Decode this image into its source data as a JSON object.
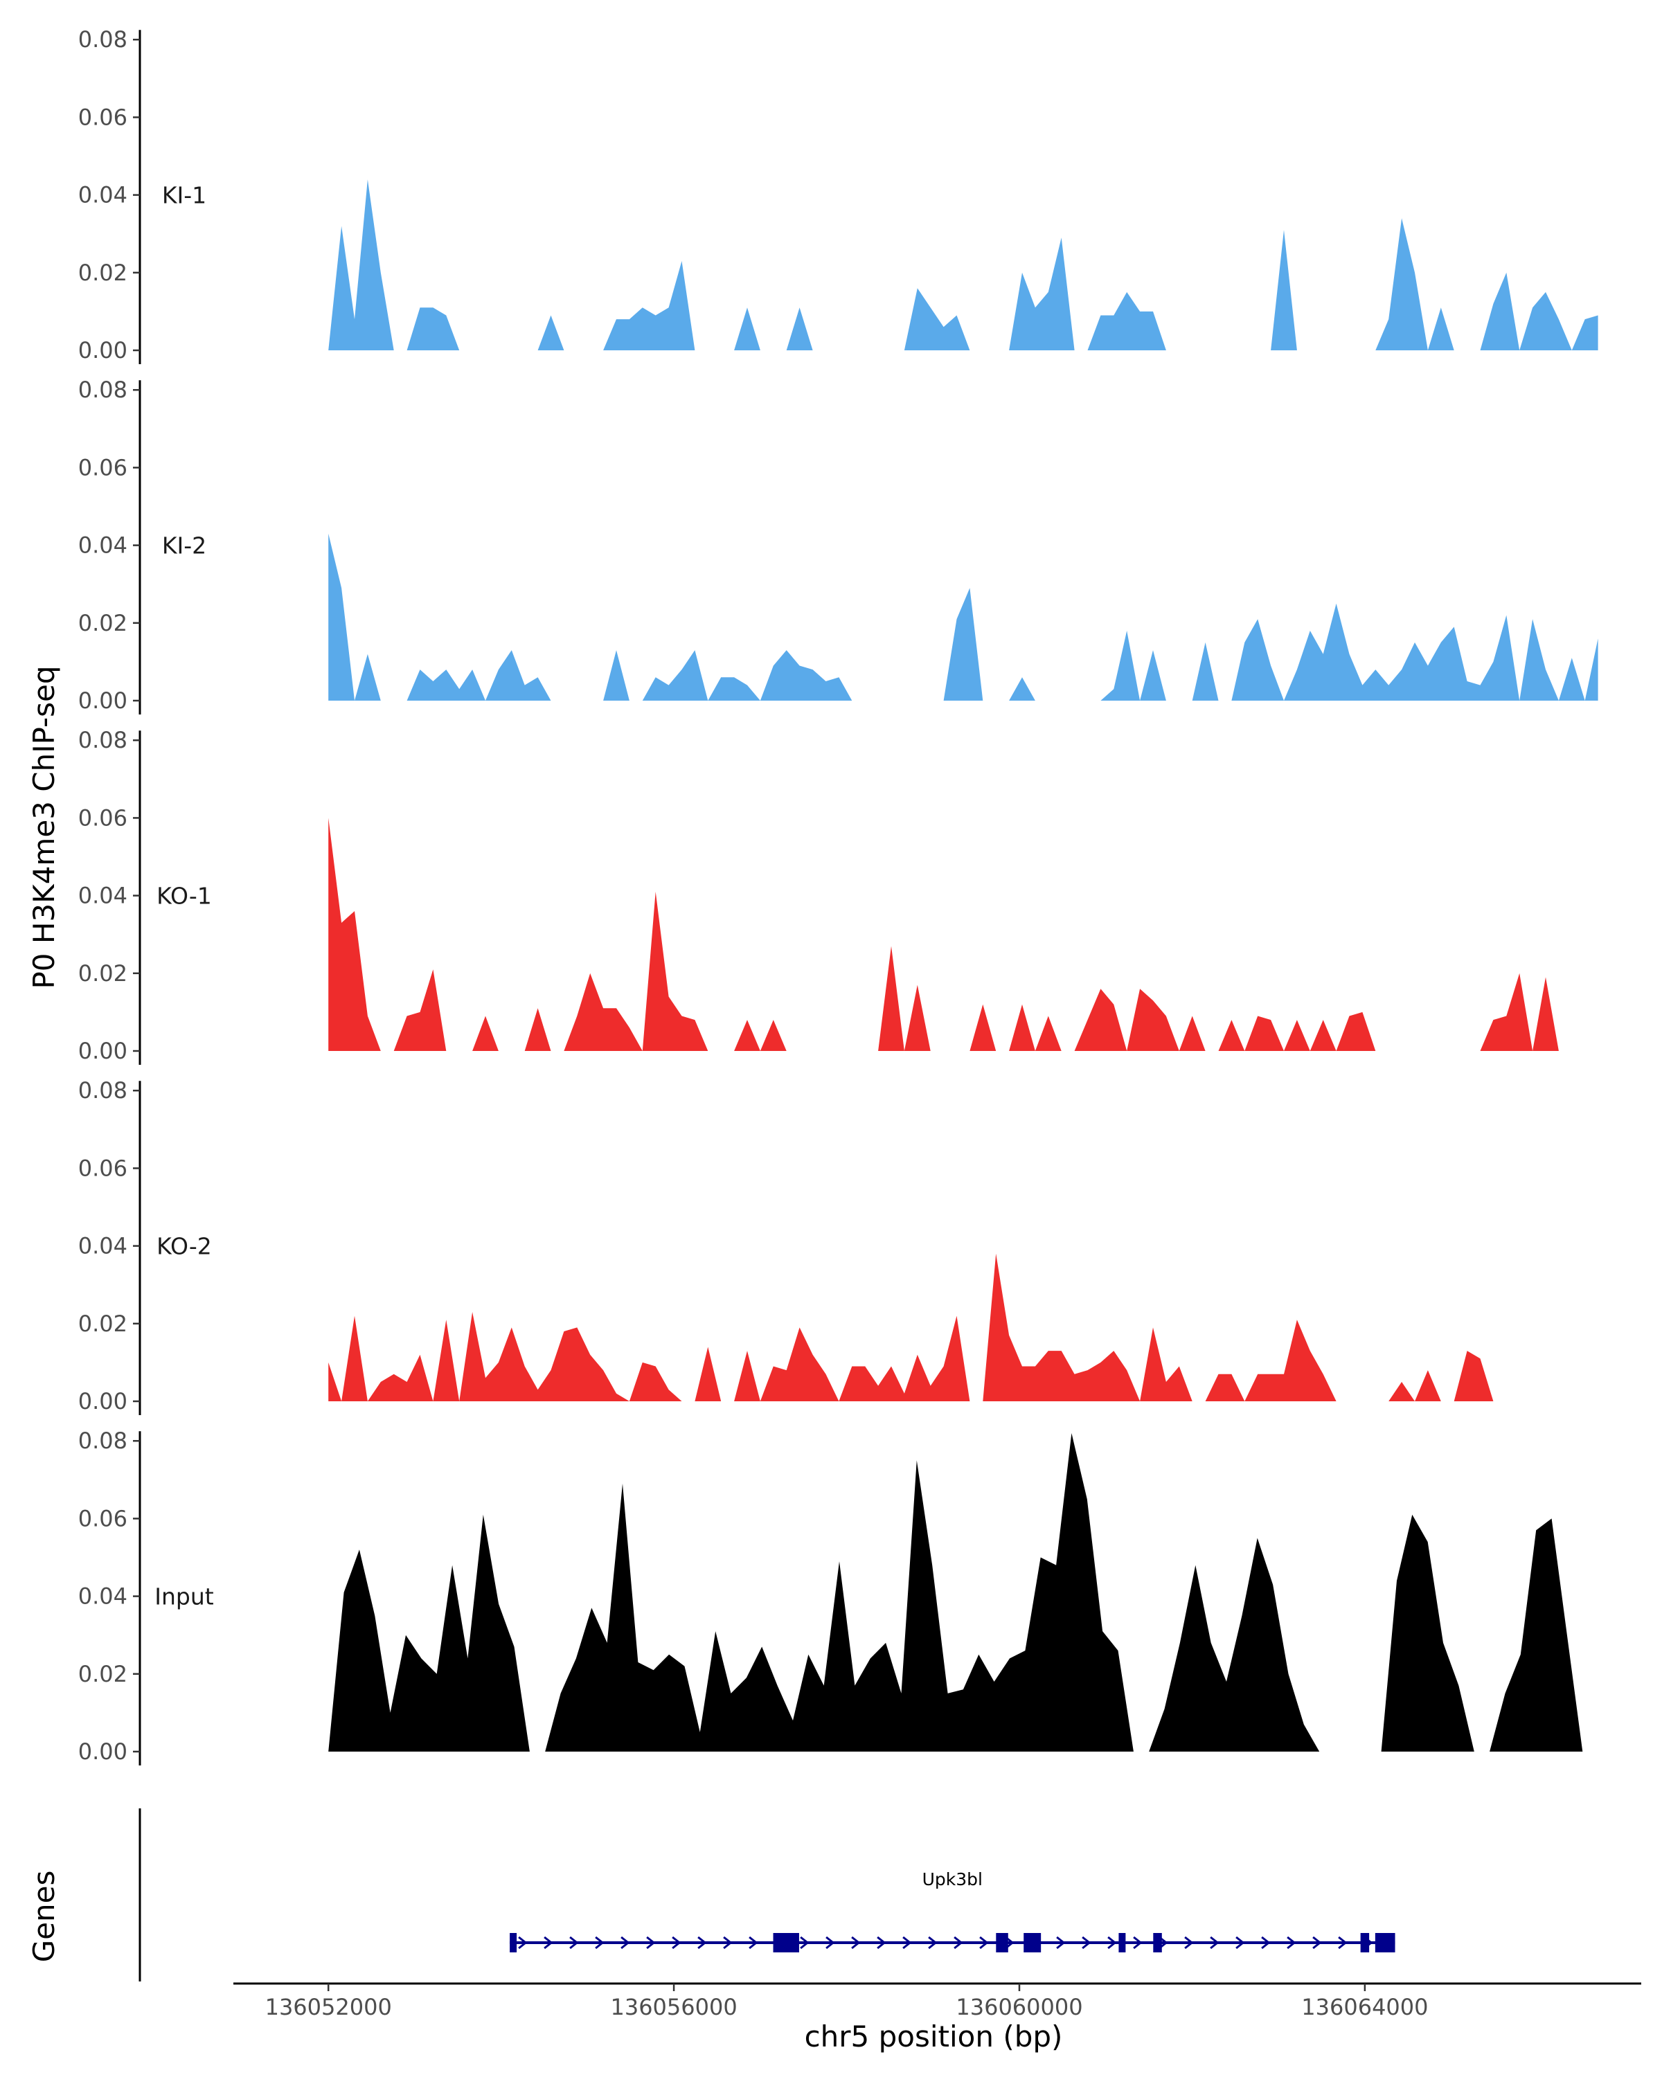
{
  "chart_data": {
    "type": "area",
    "ylabel": "P0 H3K4me3 ChIP-seq",
    "xlabel": "chr5 position (bp)",
    "x_range": [
      136052000,
      136066700
    ],
    "plot_x_range": [
      136050900,
      136067200
    ],
    "ylim": [
      0,
      0.082
    ],
    "y_ticks": [
      "0.00",
      "0.02",
      "0.04",
      "0.06",
      "0.08"
    ],
    "x_ticks": [
      {
        "label": "136052000",
        "value": 136052000
      },
      {
        "label": "136056000",
        "value": 136056000
      },
      {
        "label": "136060000",
        "value": 136060000
      },
      {
        "label": "136064000",
        "value": 136064000
      }
    ],
    "tracks": [
      {
        "name": "KI-1",
        "color": "#5aaaea",
        "values": [
          0.0,
          0.032,
          0.008,
          0.044,
          0.02,
          0.0,
          0.0,
          0.011,
          0.011,
          0.009,
          0.0,
          0.0,
          0.0,
          0.0,
          0.0,
          0.0,
          0.0,
          0.009,
          0.0,
          0.0,
          0.0,
          0.0,
          0.008,
          0.008,
          0.011,
          0.009,
          0.011,
          0.023,
          0.0,
          0.0,
          0.0,
          0.0,
          0.011,
          0.0,
          0.0,
          0.0,
          0.011,
          0.0,
          0.0,
          0.0,
          0.0,
          0.0,
          0.0,
          0.0,
          0.0,
          0.016,
          0.011,
          0.006,
          0.009,
          0.0,
          0.0,
          0.0,
          0.0,
          0.02,
          0.011,
          0.015,
          0.029,
          0.0,
          0.0,
          0.009,
          0.009,
          0.015,
          0.01,
          0.01,
          0.0,
          0.0,
          0.0,
          0.0,
          0.0,
          0.0,
          0.0,
          0.0,
          0.0,
          0.031,
          0.0,
          0.0,
          0.0,
          0.0,
          0.0,
          0.0,
          0.0,
          0.008,
          0.034,
          0.02,
          0.0,
          0.011,
          0.0,
          0.0,
          0.0,
          0.012,
          0.02,
          0.0,
          0.011,
          0.015,
          0.008,
          0.0,
          0.008,
          0.009
        ]
      },
      {
        "name": "KI-2",
        "color": "#5aaaea",
        "values": [
          0.043,
          0.029,
          0.0,
          0.012,
          0.0,
          0.0,
          0.0,
          0.008,
          0.005,
          0.008,
          0.003,
          0.008,
          0.0,
          0.008,
          0.013,
          0.004,
          0.006,
          0.0,
          0.0,
          0.0,
          0.0,
          0.0,
          0.013,
          0.0,
          0.0,
          0.006,
          0.004,
          0.008,
          0.013,
          0.0,
          0.006,
          0.006,
          0.004,
          0.0,
          0.009,
          0.013,
          0.009,
          0.008,
          0.005,
          0.006,
          0.0,
          0.0,
          0.0,
          0.0,
          0.0,
          0.0,
          0.0,
          0.0,
          0.021,
          0.029,
          0.0,
          0.0,
          0.0,
          0.006,
          0.0,
          0.0,
          0.0,
          0.0,
          0.0,
          0.0,
          0.003,
          0.018,
          0.0,
          0.013,
          0.0,
          0.0,
          0.0,
          0.015,
          0.0,
          0.0,
          0.015,
          0.021,
          0.009,
          0.0,
          0.008,
          0.018,
          0.012,
          0.025,
          0.012,
          0.004,
          0.008,
          0.004,
          0.008,
          0.015,
          0.009,
          0.015,
          0.019,
          0.005,
          0.004,
          0.01,
          0.022,
          0.0,
          0.021,
          0.008,
          0.0,
          0.011,
          0.0,
          0.016
        ]
      },
      {
        "name": "KO-1",
        "color": "#ee2c2c",
        "values": [
          0.06,
          0.033,
          0.036,
          0.009,
          0.0,
          0.0,
          0.009,
          0.01,
          0.021,
          0.0,
          0.0,
          0.0,
          0.009,
          0.0,
          0.0,
          0.0,
          0.011,
          0.0,
          0.0,
          0.009,
          0.02,
          0.011,
          0.011,
          0.006,
          0.0,
          0.041,
          0.014,
          0.009,
          0.008,
          0.0,
          0.0,
          0.0,
          0.008,
          0.0,
          0.008,
          0.0,
          0.0,
          0.0,
          0.0,
          0.0,
          0.0,
          0.0,
          0.0,
          0.027,
          0.0,
          0.017,
          0.0,
          0.0,
          0.0,
          0.0,
          0.012,
          0.0,
          0.0,
          0.012,
          0.0,
          0.009,
          0.0,
          0.0,
          0.008,
          0.016,
          0.012,
          0.0,
          0.016,
          0.013,
          0.009,
          0.0,
          0.009,
          0.0,
          0.0,
          0.008,
          0.0,
          0.009,
          0.008,
          0.0,
          0.008,
          0.0,
          0.008,
          0.0,
          0.009,
          0.01,
          0.0,
          0.0,
          0.0,
          0.0,
          0.0,
          0.0,
          0.0,
          0.0,
          0.0,
          0.008,
          0.009,
          0.02,
          0.0,
          0.019,
          0.0,
          0.0,
          0.0,
          0.0
        ]
      },
      {
        "name": "KO-2",
        "color": "#ee2c2c",
        "values": [
          0.01,
          0.0,
          0.022,
          0.0,
          0.005,
          0.007,
          0.005,
          0.012,
          0.0,
          0.021,
          0.0,
          0.023,
          0.006,
          0.01,
          0.019,
          0.009,
          0.003,
          0.008,
          0.018,
          0.019,
          0.012,
          0.008,
          0.002,
          0.0,
          0.01,
          0.009,
          0.003,
          0.0,
          0.0,
          0.014,
          0.0,
          0.0,
          0.013,
          0.0,
          0.009,
          0.008,
          0.019,
          0.012,
          0.007,
          0.0,
          0.009,
          0.009,
          0.004,
          0.009,
          0.002,
          0.012,
          0.004,
          0.009,
          0.022,
          0.0,
          0.0,
          0.038,
          0.017,
          0.009,
          0.009,
          0.013,
          0.013,
          0.007,
          0.008,
          0.01,
          0.013,
          0.008,
          0.0,
          0.019,
          0.005,
          0.009,
          0.0,
          0.0,
          0.007,
          0.007,
          0.0,
          0.007,
          0.007,
          0.007,
          0.021,
          0.013,
          0.007,
          0.0,
          0.0,
          0.0,
          0.0,
          0.0,
          0.005,
          0.0,
          0.008,
          0.0,
          0.0,
          0.013,
          0.011,
          0.0,
          0.0,
          0.0,
          0.0,
          0.0,
          0.0,
          0.0,
          0.0,
          0.0
        ]
      },
      {
        "name": "Input",
        "color": "#000000",
        "values": [
          0.0,
          0.041,
          0.052,
          0.035,
          0.01,
          0.03,
          0.024,
          0.02,
          0.048,
          0.024,
          0.061,
          0.038,
          0.027,
          0.0,
          0.0,
          0.015,
          0.024,
          0.037,
          0.028,
          0.069,
          0.023,
          0.021,
          0.025,
          0.022,
          0.005,
          0.031,
          0.015,
          0.019,
          0.027,
          0.017,
          0.008,
          0.025,
          0.017,
          0.049,
          0.017,
          0.024,
          0.028,
          0.015,
          0.075,
          0.048,
          0.015,
          0.016,
          0.025,
          0.018,
          0.024,
          0.026,
          0.05,
          0.048,
          0.082,
          0.065,
          0.031,
          0.026,
          0.0,
          0.0,
          0.011,
          0.028,
          0.048,
          0.028,
          0.018,
          0.035,
          0.055,
          0.043,
          0.02,
          0.007,
          0.0,
          0.0,
          0.0,
          0.0,
          0.0,
          0.044,
          0.061,
          0.054,
          0.028,
          0.017,
          0.0,
          0.0,
          0.015,
          0.025,
          0.057,
          0.06,
          0.03,
          0.0,
          0.0
        ]
      }
    ],
    "gene": {
      "name": "Upk3bl",
      "color": "#00008b",
      "start": 136054100,
      "end": 136064350,
      "exons": [
        {
          "start": 136054100,
          "end": 136054180
        },
        {
          "start": 136057150,
          "end": 136057450
        },
        {
          "start": 136059730,
          "end": 136059870
        },
        {
          "start": 136060050,
          "end": 136060250
        },
        {
          "start": 136061150,
          "end": 136061230
        },
        {
          "start": 136061550,
          "end": 136061650
        },
        {
          "start": 136063950,
          "end": 136064050
        },
        {
          "start": 136064120,
          "end": 136064350
        }
      ]
    },
    "gene_track_label": "Genes"
  }
}
